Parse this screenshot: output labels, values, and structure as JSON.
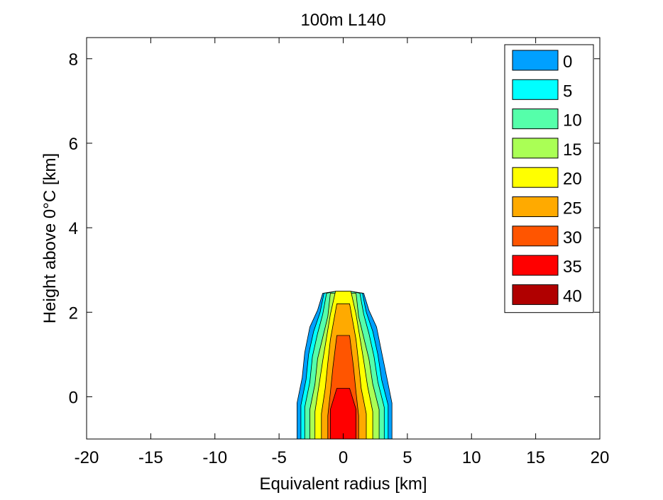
{
  "chart_data": {
    "type": "contour",
    "title": "100m L140",
    "xlabel": "Equivalent radius [km]",
    "ylabel": "Height above 0°C [km]",
    "xlim": [
      -20,
      20
    ],
    "ylim": [
      -1,
      8.5
    ],
    "xticks": [
      -20,
      -15,
      -10,
      -5,
      0,
      5,
      10,
      15,
      20
    ],
    "yticks": [
      0,
      2,
      4,
      6,
      8
    ],
    "grid": false,
    "legend_position": "top-right",
    "levels": [
      {
        "value": 0,
        "label": "0",
        "color": "#00a0ff"
      },
      {
        "value": 5,
        "label": "5",
        "color": "#00ffff"
      },
      {
        "value": 10,
        "label": "10",
        "color": "#55ffaa"
      },
      {
        "value": 15,
        "label": "15",
        "color": "#aaff55"
      },
      {
        "value": 20,
        "label": "20",
        "color": "#ffff00"
      },
      {
        "value": 25,
        "label": "25",
        "color": "#ffaa00"
      },
      {
        "value": 30,
        "label": "30",
        "color": "#ff5500"
      },
      {
        "value": 35,
        "label": "35",
        "color": "#ff0000"
      },
      {
        "value": 40,
        "label": "40",
        "color": "#b00000"
      }
    ],
    "contour_regions": [
      {
        "level": 0,
        "points": [
          [
            -3.6,
            -1
          ],
          [
            -3.6,
            -0.15
          ],
          [
            -3.2,
            0.45
          ],
          [
            -3.0,
            1.05
          ],
          [
            -2.6,
            1.65
          ],
          [
            -2.0,
            2.05
          ],
          [
            -1.6,
            2.45
          ],
          [
            -0.5,
            2.5
          ],
          [
            0.5,
            2.5
          ],
          [
            1.6,
            2.45
          ],
          [
            2.0,
            2.05
          ],
          [
            2.6,
            1.65
          ],
          [
            3.0,
            1.05
          ],
          [
            3.4,
            0.45
          ],
          [
            3.8,
            -0.15
          ],
          [
            3.8,
            -1
          ]
        ]
      },
      {
        "level": 5,
        "points": [
          [
            -3.3,
            -1
          ],
          [
            -3.3,
            -0.2
          ],
          [
            -2.9,
            0.4
          ],
          [
            -2.7,
            1.0
          ],
          [
            -2.3,
            1.55
          ],
          [
            -1.8,
            2.0
          ],
          [
            -1.5,
            2.45
          ],
          [
            -0.5,
            2.5
          ],
          [
            0.5,
            2.5
          ],
          [
            1.5,
            2.45
          ],
          [
            1.8,
            2.0
          ],
          [
            2.3,
            1.55
          ],
          [
            2.7,
            1.0
          ],
          [
            3.0,
            0.4
          ],
          [
            3.5,
            -0.2
          ],
          [
            3.5,
            -1
          ]
        ]
      },
      {
        "level": 10,
        "points": [
          [
            -3.0,
            -1
          ],
          [
            -3.0,
            -0.25
          ],
          [
            -2.6,
            0.35
          ],
          [
            -2.4,
            0.95
          ],
          [
            -2.0,
            1.5
          ],
          [
            -1.6,
            1.95
          ],
          [
            -1.3,
            2.45
          ],
          [
            -0.5,
            2.5
          ],
          [
            0.5,
            2.5
          ],
          [
            1.3,
            2.45
          ],
          [
            1.6,
            1.95
          ],
          [
            2.0,
            1.5
          ],
          [
            2.4,
            0.95
          ],
          [
            2.7,
            0.35
          ],
          [
            3.2,
            -0.25
          ],
          [
            3.2,
            -1
          ]
        ]
      },
      {
        "level": 15,
        "points": [
          [
            -2.6,
            -1
          ],
          [
            -2.6,
            -0.3
          ],
          [
            -2.2,
            0.3
          ],
          [
            -2.0,
            0.9
          ],
          [
            -1.6,
            1.4
          ],
          [
            -1.2,
            1.9
          ],
          [
            -1.0,
            2.45
          ],
          [
            1.0,
            2.45
          ],
          [
            1.2,
            1.9
          ],
          [
            1.6,
            1.4
          ],
          [
            2.0,
            0.9
          ],
          [
            2.3,
            0.3
          ],
          [
            2.8,
            -0.3
          ],
          [
            2.8,
            -1
          ]
        ]
      },
      {
        "level": 20,
        "points": [
          [
            -2.2,
            -1
          ],
          [
            -2.2,
            -0.35
          ],
          [
            -1.9,
            0.25
          ],
          [
            -1.6,
            0.85
          ],
          [
            -1.3,
            1.4
          ],
          [
            -1.0,
            1.95
          ],
          [
            -0.6,
            2.5
          ],
          [
            0.6,
            2.5
          ],
          [
            1.0,
            1.95
          ],
          [
            1.3,
            1.4
          ],
          [
            1.6,
            0.85
          ],
          [
            1.9,
            0.25
          ],
          [
            2.3,
            -0.35
          ],
          [
            2.3,
            -1
          ]
        ]
      },
      {
        "level": 25,
        "points": [
          [
            -1.7,
            -1
          ],
          [
            -1.7,
            -0.4
          ],
          [
            -1.4,
            0.2
          ],
          [
            -1.2,
            0.8
          ],
          [
            -1.0,
            1.35
          ],
          [
            -0.5,
            2.2
          ],
          [
            0.5,
            2.2
          ],
          [
            1.0,
            1.35
          ],
          [
            1.2,
            0.8
          ],
          [
            1.4,
            0.2
          ],
          [
            1.8,
            -0.4
          ],
          [
            1.8,
            -1
          ]
        ]
      },
      {
        "level": 30,
        "points": [
          [
            -1.2,
            -1
          ],
          [
            -1.2,
            -0.45
          ],
          [
            -1.0,
            0.1
          ],
          [
            -0.8,
            0.7
          ],
          [
            -0.5,
            1.45
          ],
          [
            0.5,
            1.45
          ],
          [
            0.8,
            0.7
          ],
          [
            1.0,
            0.1
          ],
          [
            1.2,
            -0.45
          ],
          [
            1.2,
            -1
          ]
        ]
      },
      {
        "level": 35,
        "points": [
          [
            -1.0,
            -1
          ],
          [
            -1.0,
            -0.3
          ],
          [
            -0.5,
            0.2
          ],
          [
            0.5,
            0.2
          ],
          [
            1.0,
            -0.3
          ],
          [
            1.0,
            -1
          ]
        ]
      }
    ]
  }
}
